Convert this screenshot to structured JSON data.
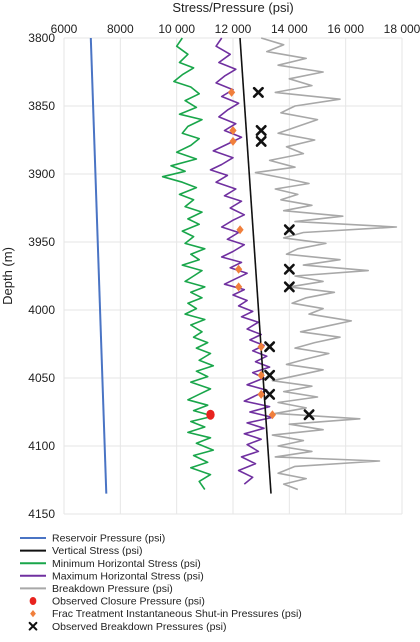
{
  "chart_data": {
    "type": "line",
    "title": "",
    "xlabel": "Stress/Pressure (psi)",
    "ylabel": "Depth (m)",
    "x_axis_position": "top",
    "y_inverted": true,
    "xlim": [
      6000,
      18000
    ],
    "ylim": [
      3800,
      4150
    ],
    "x_ticks": [
      6000,
      8000,
      10000,
      12000,
      14000,
      16000,
      18000
    ],
    "x_tick_labels": [
      "6000",
      "8000",
      "10 000",
      "12 000",
      "14 000",
      "16 000",
      "18 000"
    ],
    "y_ticks": [
      3800,
      3850,
      3900,
      3950,
      4000,
      4050,
      4100,
      4150
    ],
    "y_tick_labels": [
      "3800",
      "3850",
      "3900",
      "3950",
      "4000",
      "4050",
      "4100",
      "4150"
    ],
    "grid": true,
    "legend_position": "bottom",
    "series": [
      {
        "name": "Reservoir Pressure (psi)",
        "kind": "line",
        "color": "#4a74c4",
        "points": [
          [
            6950,
            3800
          ],
          [
            7500,
            4135
          ]
        ]
      },
      {
        "name": "Vertical Stress (psi)",
        "kind": "line",
        "color": "#111111",
        "points": [
          [
            12250,
            3800
          ],
          [
            13350,
            4135
          ]
        ]
      },
      {
        "name": "Minimum Horizontal Stress (psi)",
        "kind": "line",
        "color": "#19a64a",
        "points": [
          [
            10200,
            3800
          ],
          [
            10000,
            3806
          ],
          [
            10400,
            3812
          ],
          [
            10100,
            3818
          ],
          [
            10600,
            3822
          ],
          [
            10200,
            3827
          ],
          [
            9900,
            3832
          ],
          [
            10500,
            3836
          ],
          [
            10800,
            3841
          ],
          [
            10300,
            3846
          ],
          [
            10700,
            3851
          ],
          [
            10100,
            3856
          ],
          [
            10900,
            3860
          ],
          [
            10400,
            3865
          ],
          [
            10200,
            3870
          ],
          [
            10800,
            3874
          ],
          [
            10500,
            3879
          ],
          [
            10000,
            3884
          ],
          [
            10700,
            3889
          ],
          [
            9800,
            3894
          ],
          [
            10300,
            3898
          ],
          [
            9500,
            3902
          ],
          [
            10200,
            3906
          ],
          [
            10700,
            3910
          ],
          [
            10100,
            3915
          ],
          [
            10600,
            3919
          ],
          [
            10300,
            3924
          ],
          [
            10900,
            3928
          ],
          [
            10400,
            3933
          ],
          [
            10800,
            3937
          ],
          [
            10200,
            3942
          ],
          [
            10600,
            3946
          ],
          [
            10300,
            3951
          ],
          [
            11000,
            3955
          ],
          [
            10500,
            3959
          ],
          [
            10800,
            3963
          ],
          [
            10200,
            3967
          ],
          [
            10900,
            3971
          ],
          [
            10600,
            3975
          ],
          [
            10300,
            3979
          ],
          [
            11000,
            3983
          ],
          [
            10500,
            3987
          ],
          [
            10900,
            3991
          ],
          [
            10400,
            3995
          ],
          [
            10700,
            3999
          ],
          [
            10300,
            4003
          ],
          [
            11000,
            4007
          ],
          [
            10500,
            4011
          ],
          [
            10900,
            4016
          ],
          [
            10600,
            4020
          ],
          [
            11100,
            4024
          ],
          [
            10700,
            4028
          ],
          [
            11200,
            4032
          ],
          [
            10800,
            4037
          ],
          [
            11300,
            4041
          ],
          [
            10700,
            4045
          ],
          [
            11100,
            4049
          ],
          [
            10500,
            4053
          ],
          [
            11200,
            4058
          ],
          [
            10800,
            4062
          ],
          [
            10400,
            4066
          ],
          [
            11100,
            4070
          ],
          [
            10600,
            4074
          ],
          [
            11300,
            4078
          ],
          [
            10500,
            4082
          ],
          [
            11000,
            4086
          ],
          [
            10400,
            4090
          ],
          [
            11200,
            4094
          ],
          [
            10700,
            4098
          ],
          [
            11300,
            4103
          ],
          [
            10600,
            4107
          ],
          [
            11100,
            4112
          ],
          [
            10500,
            4116
          ],
          [
            11200,
            4121
          ],
          [
            10800,
            4126
          ],
          [
            11000,
            4132
          ]
        ]
      },
      {
        "name": "Maximum Horizontal Stress (psi)",
        "kind": "line",
        "color": "#7030a0",
        "points": [
          [
            11600,
            3800
          ],
          [
            11400,
            3806
          ],
          [
            11900,
            3812
          ],
          [
            11500,
            3818
          ],
          [
            12100,
            3823
          ],
          [
            11700,
            3828
          ],
          [
            11400,
            3833
          ],
          [
            12000,
            3838
          ],
          [
            11600,
            3843
          ],
          [
            12200,
            3848
          ],
          [
            11800,
            3853
          ],
          [
            11500,
            3858
          ],
          [
            12100,
            3863
          ],
          [
            11700,
            3868
          ],
          [
            12300,
            3873
          ],
          [
            11800,
            3878
          ],
          [
            11300,
            3883
          ],
          [
            12000,
            3888
          ],
          [
            11600,
            3893
          ],
          [
            11200,
            3897
          ],
          [
            11800,
            3901
          ],
          [
            11400,
            3906
          ],
          [
            12100,
            3911
          ],
          [
            11700,
            3916
          ],
          [
            12300,
            3920
          ],
          [
            11900,
            3925
          ],
          [
            12400,
            3930
          ],
          [
            12000,
            3934
          ],
          [
            11600,
            3939
          ],
          [
            12200,
            3943
          ],
          [
            11800,
            3948
          ],
          [
            12400,
            3952
          ],
          [
            12000,
            3957
          ],
          [
            11600,
            3961
          ],
          [
            12300,
            3965
          ],
          [
            11900,
            3969
          ],
          [
            12500,
            3973
          ],
          [
            12100,
            3977
          ],
          [
            11700,
            3981
          ],
          [
            12400,
            3985
          ],
          [
            12000,
            3989
          ],
          [
            12500,
            3993
          ],
          [
            12200,
            3997
          ],
          [
            12700,
            4001
          ],
          [
            12300,
            4005
          ],
          [
            12900,
            4009
          ],
          [
            12500,
            4014
          ],
          [
            13000,
            4018
          ],
          [
            12600,
            4022
          ],
          [
            13100,
            4026
          ],
          [
            12700,
            4030
          ],
          [
            13200,
            4034
          ],
          [
            12800,
            4038
          ],
          [
            13300,
            4042
          ],
          [
            12700,
            4046
          ],
          [
            13100,
            4050
          ],
          [
            12500,
            4055
          ],
          [
            13200,
            4059
          ],
          [
            12800,
            4063
          ],
          [
            12400,
            4067
          ],
          [
            13300,
            4071
          ],
          [
            12600,
            4075
          ],
          [
            13400,
            4079
          ],
          [
            12500,
            4083
          ],
          [
            13100,
            4087
          ],
          [
            12400,
            4091
          ],
          [
            13000,
            4095
          ],
          [
            12500,
            4099
          ],
          [
            12900,
            4104
          ],
          [
            12300,
            4108
          ],
          [
            12800,
            4113
          ],
          [
            12200,
            4118
          ],
          [
            12700,
            4123
          ],
          [
            12400,
            4128
          ]
        ]
      },
      {
        "name": "Breakdown Pressure (psi)",
        "kind": "line",
        "color": "#a8a8a8",
        "points": [
          [
            13000,
            3800
          ],
          [
            13800,
            3805
          ],
          [
            13200,
            3810
          ],
          [
            14600,
            3815
          ],
          [
            13600,
            3820
          ],
          [
            15200,
            3825
          ],
          [
            14000,
            3830
          ],
          [
            14800,
            3835
          ],
          [
            13500,
            3840
          ],
          [
            15800,
            3845
          ],
          [
            14200,
            3850
          ],
          [
            13700,
            3855
          ],
          [
            15000,
            3860
          ],
          [
            14300,
            3865
          ],
          [
            13600,
            3870
          ],
          [
            14900,
            3875
          ],
          [
            13900,
            3880
          ],
          [
            14500,
            3885
          ],
          [
            13300,
            3890
          ],
          [
            14200,
            3895
          ],
          [
            12800,
            3899
          ],
          [
            13800,
            3903
          ],
          [
            14700,
            3907
          ],
          [
            13500,
            3911
          ],
          [
            14300,
            3915
          ],
          [
            13700,
            3919
          ],
          [
            14800,
            3923
          ],
          [
            13800,
            3927
          ],
          [
            15900,
            3931
          ],
          [
            14200,
            3935
          ],
          [
            17800,
            3939
          ],
          [
            14500,
            3943
          ],
          [
            13800,
            3947
          ],
          [
            15300,
            3951
          ],
          [
            14300,
            3955
          ],
          [
            13900,
            3959
          ],
          [
            15800,
            3963
          ],
          [
            14500,
            3967
          ],
          [
            16800,
            3971
          ],
          [
            14200,
            3975
          ],
          [
            15200,
            3979
          ],
          [
            14000,
            3983
          ],
          [
            15600,
            3987
          ],
          [
            14600,
            3991
          ],
          [
            14100,
            3995
          ],
          [
            15200,
            3999
          ],
          [
            14700,
            4003
          ],
          [
            16200,
            4008
          ],
          [
            15300,
            4012
          ],
          [
            14400,
            4016
          ],
          [
            15800,
            4020
          ],
          [
            14900,
            4024
          ],
          [
            14200,
            4028
          ],
          [
            15400,
            4032
          ],
          [
            14600,
            4036
          ],
          [
            13900,
            4040
          ],
          [
            15200,
            4044
          ],
          [
            14300,
            4048
          ],
          [
            13400,
            4052
          ],
          [
            14800,
            4056
          ],
          [
            13800,
            4060
          ],
          [
            15000,
            4064
          ],
          [
            13600,
            4068
          ],
          [
            14600,
            4072
          ],
          [
            13500,
            4076
          ],
          [
            16500,
            4080
          ],
          [
            14000,
            4084
          ],
          [
            15200,
            4088
          ],
          [
            13400,
            4092
          ],
          [
            14500,
            4096
          ],
          [
            13600,
            4100
          ],
          [
            14800,
            4104
          ],
          [
            13500,
            4108
          ],
          [
            17200,
            4111
          ],
          [
            14200,
            4115
          ],
          [
            13600,
            4120
          ],
          [
            14600,
            4124
          ],
          [
            13800,
            4128
          ],
          [
            14300,
            4132
          ]
        ]
      },
      {
        "name": "Observed Closure Pressure (psi)",
        "kind": "marker",
        "marker": "circle",
        "color": "#e8231f",
        "points": [
          [
            11200,
            4077
          ]
        ]
      },
      {
        "name": "Frac Treatment Instantaneous Shut-in Pressures (psi)",
        "kind": "marker",
        "marker": "diamond",
        "color": "#f07f3c",
        "points": [
          [
            11950,
            3840
          ],
          [
            12000,
            3868
          ],
          [
            12000,
            3876
          ],
          [
            12250,
            3941
          ],
          [
            12200,
            3970
          ],
          [
            12200,
            3983
          ],
          [
            13000,
            4027
          ],
          [
            13000,
            4048
          ],
          [
            13000,
            4062
          ],
          [
            13400,
            4077
          ]
        ]
      },
      {
        "name": "Observed Breakdown Pressures (psi)",
        "kind": "marker",
        "marker": "x",
        "color": "#111111",
        "points": [
          [
            12900,
            3840
          ],
          [
            13000,
            3868
          ],
          [
            13000,
            3876
          ],
          [
            14000,
            3941
          ],
          [
            14000,
            3970
          ],
          [
            14000,
            3983
          ],
          [
            13300,
            4027
          ],
          [
            13300,
            4048
          ],
          [
            13300,
            4062
          ],
          [
            14700,
            4077
          ]
        ]
      }
    ]
  }
}
